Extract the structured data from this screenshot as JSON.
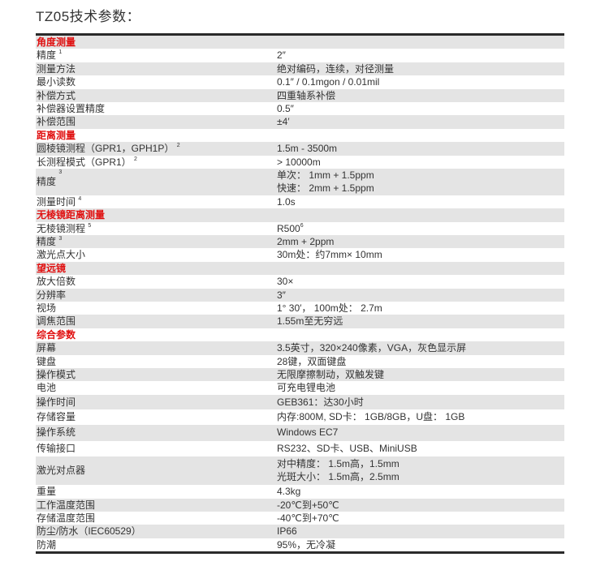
{
  "title": "TZ05技术参数：",
  "colors": {
    "section_header": "#e01010",
    "stripe": "#e4e4e4",
    "rule": "#2a2a2a"
  },
  "sections": [
    {
      "header": "角度测量",
      "rows": [
        {
          "label": "精度",
          "sup": "1",
          "values": [
            "2″"
          ]
        },
        {
          "label": "测量方法",
          "values": [
            "绝对编码，连续，对径测量"
          ]
        },
        {
          "label": "最小读数",
          "values": [
            "0.1″ / 0.1mgon / 0.01mil"
          ]
        },
        {
          "label": "补偿方式",
          "values": [
            "四重轴系补偿"
          ]
        },
        {
          "label": "补偿器设置精度",
          "values": [
            "0.5″"
          ]
        },
        {
          "label": "补偿范围",
          "values": [
            "±4′"
          ]
        }
      ]
    },
    {
      "header": "距离测量",
      "rows": [
        {
          "label": "圆棱镜测程（GPR1，GPH1P）",
          "sup": "2",
          "values": [
            "1.5m - 3500m"
          ]
        },
        {
          "label": "长测程模式（GPR1）",
          "sup": "2",
          "values": [
            "> 10000m"
          ]
        },
        {
          "label": "精度",
          "sup": "3",
          "values": [
            "单次： 1mm + 1.5ppm",
            "快速： 2mm + 1.5ppm"
          ]
        },
        {
          "label": "测量时间",
          "sup": "4",
          "values": [
            "1.0s"
          ]
        }
      ]
    },
    {
      "header": "无棱镜距离测量",
      "rows": [
        {
          "label": "无棱镜测程",
          "sup": "5",
          "values": [
            "R500"
          ],
          "value_sup": "6"
        },
        {
          "label": "精度",
          "sup": "3",
          "values": [
            "2mm + 2ppm"
          ]
        },
        {
          "label": "激光点大小",
          "values": [
            "30m处：约7mm× 10mm"
          ]
        }
      ]
    },
    {
      "header": "望远镜",
      "rows": [
        {
          "label": "放大倍数",
          "values": [
            "30×"
          ]
        },
        {
          "label": "分辨率",
          "values": [
            "3″"
          ]
        },
        {
          "label": "视场",
          "values": [
            "1° 30′， 100m处： 2.7m"
          ]
        },
        {
          "label": "调焦范围",
          "values": [
            "1.55m至无穷远"
          ]
        }
      ]
    },
    {
      "header": "综合参数",
      "rows": [
        {
          "label": "屏幕",
          "values": [
            "3.5英寸，320×240像素，VGA，灰色显示屏"
          ]
        },
        {
          "label": "键盘",
          "values": [
            "28键，双面键盘"
          ]
        },
        {
          "label": "操作模式",
          "values": [
            "无限摩擦制动，双触发键"
          ]
        },
        {
          "label": "电池",
          "values": [
            "可充电锂电池"
          ]
        },
        {
          "label": "操作时间",
          "values": [
            "GEB361：达30小时"
          ]
        },
        {
          "label": "存储容量",
          "values": [
            "内存:800M, SD卡： 1GB/8GB，U盘： 1GB"
          ]
        },
        {
          "label": "操作系统",
          "values": [
            "Windows EC7"
          ]
        },
        {
          "label": "传输接口",
          "values": [
            "RS232、SD卡、USB、MiniUSB"
          ]
        },
        {
          "label": "激光对点器",
          "values": [
            "对中精度： 1.5m高，1.5mm",
            "光斑大小： 1.5m高，2.5mm"
          ]
        },
        {
          "label": "重量",
          "values": [
            "4.3kg"
          ]
        },
        {
          "label": "工作温度范围",
          "values": [
            "-20℃到+50℃"
          ]
        },
        {
          "label": "存储温度范围",
          "values": [
            "-40℃到+70℃"
          ]
        },
        {
          "label": "防尘/防水（IEC60529）",
          "values": [
            "IP66"
          ]
        },
        {
          "label": "防潮",
          "values": [
            "95%，无冷凝"
          ]
        }
      ]
    }
  ]
}
